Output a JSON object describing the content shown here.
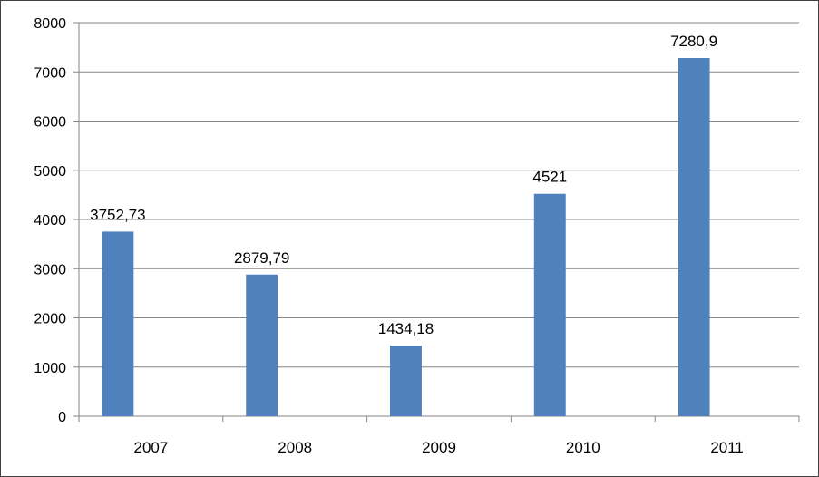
{
  "chart_data": {
    "type": "bar",
    "categories": [
      "2007",
      "2008",
      "2009",
      "2010",
      "2011"
    ],
    "values": [
      3752.73,
      2879.79,
      1434.18,
      4521,
      7280.9
    ],
    "data_labels": [
      "3752,73",
      "2879,79",
      "1434,18",
      "4521",
      "7280,9"
    ],
    "ylim": [
      0,
      8000
    ],
    "yticks": [
      0,
      1000,
      2000,
      3000,
      4000,
      5000,
      6000,
      7000,
      8000
    ],
    "ytick_labels": [
      "0",
      "1000",
      "2000",
      "3000",
      "4000",
      "5000",
      "6000",
      "7000",
      "8000"
    ],
    "grid": true,
    "legend": "none",
    "title": "",
    "xlabel": "",
    "ylabel": "",
    "colors": {
      "bar": "#4f81bd",
      "grid": "#868686",
      "axis": "#868686",
      "frame": "#404040"
    }
  }
}
